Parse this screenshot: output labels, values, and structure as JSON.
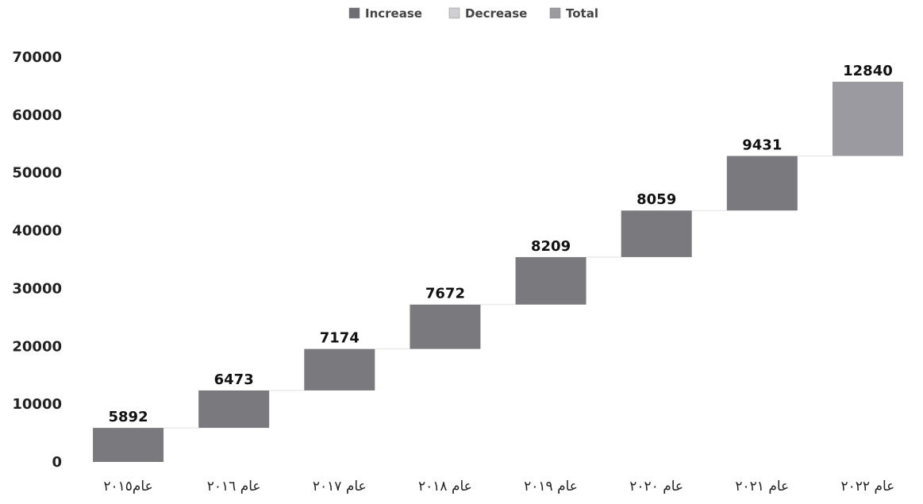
{
  "colors": {
    "increase": "#7a7a7e",
    "decrease": "#cfcfd3",
    "total": "#9a9aa0",
    "connector": "#e2e2e2"
  },
  "chart_data": {
    "type": "bar",
    "subtype": "waterfall",
    "legend": {
      "placement": "top-center",
      "entries": [
        {
          "label": "Increase",
          "color": "#6e6e72"
        },
        {
          "label": "Decrease",
          "color": "#cfcfd3"
        },
        {
          "label": "Total",
          "color": "#9a9aa0"
        }
      ]
    },
    "categories": [
      "عام٢٠١٥",
      "عام ٢٠١٦",
      "عام ٢٠١٧",
      "عام ٢٠١٨",
      "عام ٢٠١٩",
      "عام ٢٠٢٠",
      "عام ٢٠٢١",
      "عام ٢٠٢٢"
    ],
    "values": [
      5892,
      6473,
      7174,
      7672,
      8209,
      8059,
      9431,
      12840
    ],
    "data_labels": [
      "5892",
      "6473",
      "7174",
      "7672",
      "8209",
      "8059",
      "9431",
      "12840"
    ],
    "ylim": [
      0,
      70000
    ],
    "yticks": [
      "0",
      "10000",
      "20000",
      "30000",
      "40000",
      "50000",
      "60000",
      "70000"
    ],
    "grid": false,
    "title": "",
    "xlabel": "",
    "ylabel": ""
  }
}
